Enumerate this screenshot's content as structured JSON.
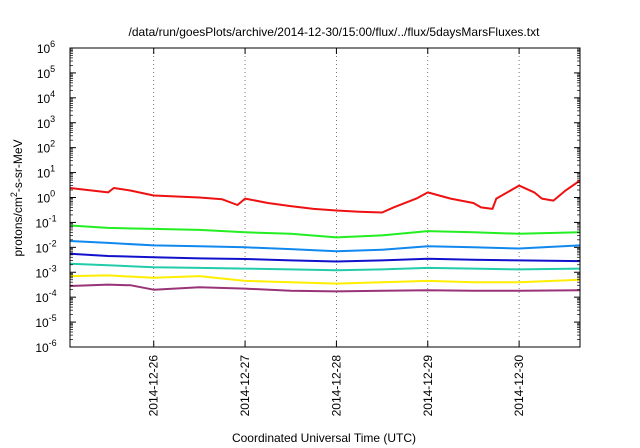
{
  "chart_data": {
    "type": "line",
    "title": "/data/run/goesPlots/archive/2014-12-30/15:00/flux/../flux/5daysMarsFluxes.txt",
    "xlabel": "Coordinated Universal Time (UTC)",
    "ylabel": {
      "pre": "protons/cm",
      "sup": "2",
      "post": "-s-sr-MeV"
    },
    "x_range": [
      "2014-12-25T02:00",
      "2014-12-30T16:00"
    ],
    "x_ticks": [
      "2014-12-26",
      "2014-12-27",
      "2014-12-28",
      "2014-12-29",
      "2014-12-30"
    ],
    "y_scale": "log",
    "y_range": [
      1e-06,
      1000000.0
    ],
    "y_ticks": [
      {
        "value": 1e-06,
        "base": "10",
        "exp": "-6"
      },
      {
        "value": 1e-05,
        "base": "10",
        "exp": "-5"
      },
      {
        "value": 0.0001,
        "base": "10",
        "exp": "-4"
      },
      {
        "value": 0.001,
        "base": "10",
        "exp": "-3"
      },
      {
        "value": 0.01,
        "base": "10",
        "exp": "-2"
      },
      {
        "value": 0.1,
        "base": "10",
        "exp": "-1"
      },
      {
        "value": 1,
        "base": "10",
        "exp": "0"
      },
      {
        "value": 10,
        "base": "10",
        "exp": "1"
      },
      {
        "value": 100,
        "base": "10",
        "exp": "2"
      },
      {
        "value": 1000,
        "base": "10",
        "exp": "3"
      },
      {
        "value": 10000,
        "base": "10",
        "exp": "4"
      },
      {
        "value": 100000,
        "base": "10",
        "exp": "5"
      },
      {
        "value": 1000000,
        "base": "10",
        "exp": "6"
      }
    ],
    "grid": {
      "x": true,
      "y": false,
      "style": "dotted"
    },
    "legend": "none",
    "series": [
      {
        "color": "#ee1111",
        "x": [
          "2014-12-25T02:00",
          "2014-12-25T12:00",
          "2014-12-25T13:30",
          "2014-12-25T18:00",
          "2014-12-26T00:00",
          "2014-12-26T06:00",
          "2014-12-26T12:00",
          "2014-12-26T18:00",
          "2014-12-26T22:00",
          "2014-12-27T00:00",
          "2014-12-27T06:00",
          "2014-12-27T12:00",
          "2014-12-27T18:00",
          "2014-12-28T00:00",
          "2014-12-28T06:00",
          "2014-12-28T12:00",
          "2014-12-28T15:00",
          "2014-12-28T21:00",
          "2014-12-29T00:00",
          "2014-12-29T06:00",
          "2014-12-29T12:00",
          "2014-12-29T14:00",
          "2014-12-29T17:00",
          "2014-12-29T18:00",
          "2014-12-30T00:00",
          "2014-12-30T04:00",
          "2014-12-30T06:00",
          "2014-12-30T09:00",
          "2014-12-30T12:00",
          "2014-12-30T16:00"
        ],
        "y": [
          2.4,
          1.6,
          2.4,
          1.9,
          1.2,
          1.1,
          1.0,
          0.85,
          0.5,
          0.9,
          0.6,
          0.45,
          0.35,
          0.3,
          0.27,
          0.25,
          0.4,
          0.9,
          1.6,
          0.9,
          0.6,
          0.4,
          0.35,
          0.9,
          3.0,
          1.6,
          0.9,
          0.75,
          1.8,
          4.8
        ]
      },
      {
        "color": "#22ee22",
        "x": [
          "2014-12-25T02:00",
          "2014-12-25T12:00",
          "2014-12-26T00:00",
          "2014-12-26T12:00",
          "2014-12-27T00:00",
          "2014-12-27T12:00",
          "2014-12-28T00:00",
          "2014-12-28T12:00",
          "2014-12-29T00:00",
          "2014-12-29T12:00",
          "2014-12-30T00:00",
          "2014-12-30T16:00"
        ],
        "y": [
          0.075,
          0.06,
          0.055,
          0.05,
          0.04,
          0.035,
          0.025,
          0.03,
          0.045,
          0.04,
          0.035,
          0.04
        ]
      },
      {
        "color": "#1188ee",
        "x": [
          "2014-12-25T02:00",
          "2014-12-25T12:00",
          "2014-12-26T00:00",
          "2014-12-26T12:00",
          "2014-12-27T00:00",
          "2014-12-27T12:00",
          "2014-12-28T00:00",
          "2014-12-28T12:00",
          "2014-12-29T00:00",
          "2014-12-29T12:00",
          "2014-12-30T00:00",
          "2014-12-30T16:00"
        ],
        "y": [
          0.018,
          0.015,
          0.012,
          0.011,
          0.01,
          0.0085,
          0.007,
          0.008,
          0.011,
          0.01,
          0.009,
          0.012
        ]
      },
      {
        "color": "#1111cc",
        "x": [
          "2014-12-25T02:00",
          "2014-12-25T12:00",
          "2014-12-26T00:00",
          "2014-12-26T12:00",
          "2014-12-27T00:00",
          "2014-12-27T12:00",
          "2014-12-28T00:00",
          "2014-12-28T12:00",
          "2014-12-29T00:00",
          "2014-12-29T12:00",
          "2014-12-30T00:00",
          "2014-12-30T16:00"
        ],
        "y": [
          0.0055,
          0.0045,
          0.004,
          0.0036,
          0.0034,
          0.003,
          0.0027,
          0.003,
          0.0035,
          0.0032,
          0.003,
          0.0028
        ]
      },
      {
        "color": "#22ccaa",
        "x": [
          "2014-12-25T02:00",
          "2014-12-25T12:00",
          "2014-12-26T00:00",
          "2014-12-26T12:00",
          "2014-12-27T00:00",
          "2014-12-27T12:00",
          "2014-12-28T00:00",
          "2014-12-28T12:00",
          "2014-12-29T00:00",
          "2014-12-29T12:00",
          "2014-12-30T00:00",
          "2014-12-30T16:00"
        ],
        "y": [
          0.0022,
          0.0019,
          0.0016,
          0.0015,
          0.0014,
          0.0013,
          0.0012,
          0.0013,
          0.0015,
          0.0014,
          0.0013,
          0.0014
        ]
      },
      {
        "color": "#ffee00",
        "x": [
          "2014-12-25T02:00",
          "2014-12-25T12:00",
          "2014-12-26T00:00",
          "2014-12-26T12:00",
          "2014-12-27T00:00",
          "2014-12-27T12:00",
          "2014-12-28T00:00",
          "2014-12-28T12:00",
          "2014-12-29T00:00",
          "2014-12-29T12:00",
          "2014-12-30T00:00",
          "2014-12-30T16:00"
        ],
        "y": [
          0.0007,
          0.00075,
          0.0006,
          0.0007,
          0.00045,
          0.0004,
          0.00035,
          0.0004,
          0.00045,
          0.0004,
          0.0004,
          0.0005
        ]
      },
      {
        "color": "#993377",
        "x": [
          "2014-12-25T02:00",
          "2014-12-25T12:00",
          "2014-12-25T18:00",
          "2014-12-26T00:00",
          "2014-12-26T12:00",
          "2014-12-27T00:00",
          "2014-12-27T12:00",
          "2014-12-28T00:00",
          "2014-12-28T12:00",
          "2014-12-29T00:00",
          "2014-12-29T12:00",
          "2014-12-30T00:00",
          "2014-12-30T16:00"
        ],
        "y": [
          0.00028,
          0.00032,
          0.0003,
          0.0002,
          0.00025,
          0.00022,
          0.00018,
          0.00017,
          0.00018,
          0.00019,
          0.00018,
          0.00018,
          0.00019
        ]
      }
    ]
  }
}
